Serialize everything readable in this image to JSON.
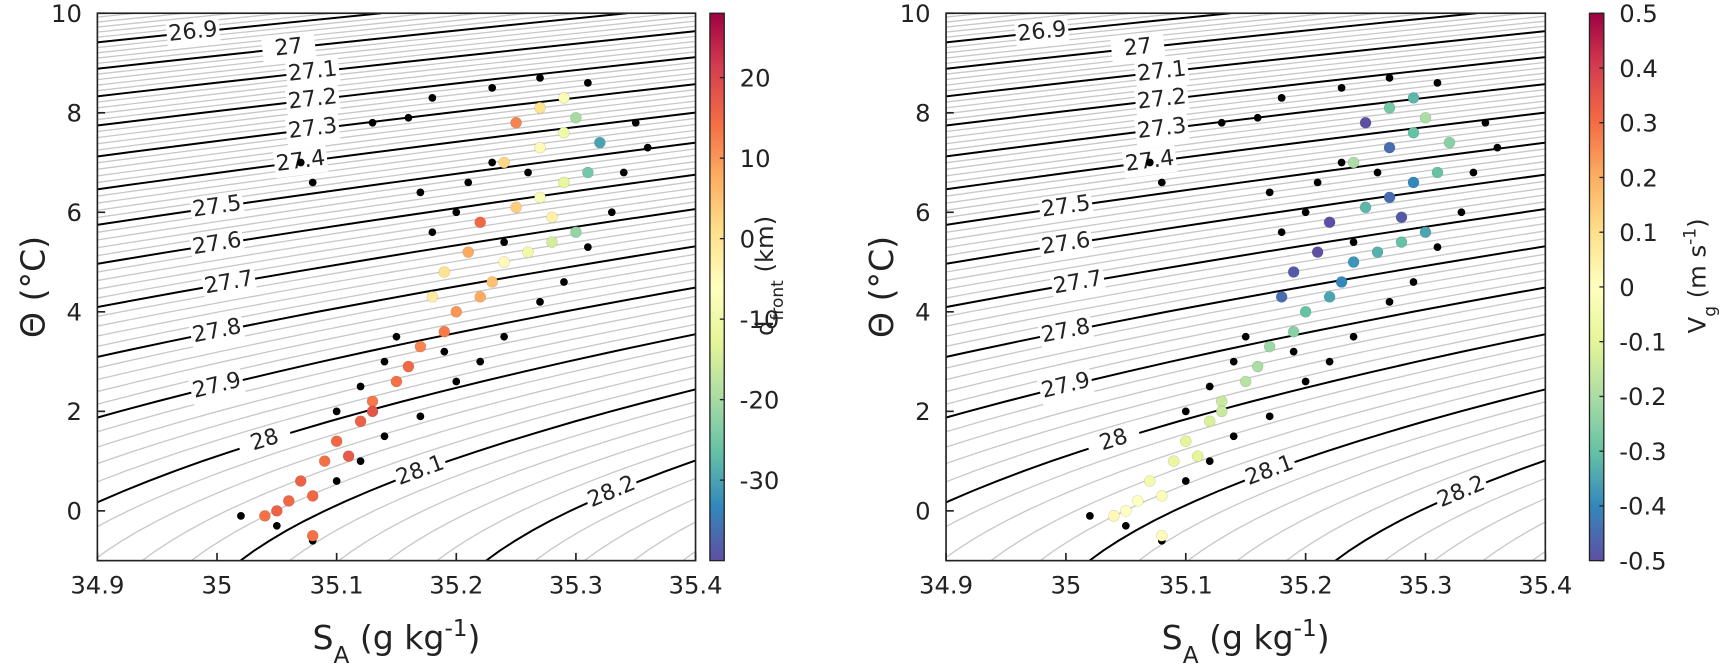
{
  "chart_data": [
    {
      "type": "scatter",
      "xlabel": [
        {
          "text": "S"
        },
        {
          "text": "A",
          "style": "sub"
        },
        {
          "text": " (g kg"
        },
        {
          "text": "-1",
          "style": "sup"
        },
        {
          "text": ")"
        }
      ],
      "ylabel": [
        {
          "text": "Θ (°C)"
        }
      ],
      "xlim": [
        34.9,
        35.4
      ],
      "xticks": [
        34.9,
        35,
        35.1,
        35.2,
        35.3,
        35.4
      ],
      "ylim": [
        -1,
        10
      ],
      "yticks": [
        0,
        2,
        4,
        6,
        8,
        10
      ],
      "contours": [
        26.9,
        27,
        27.1,
        27.2,
        27.3,
        27.4,
        27.5,
        27.6,
        27.7,
        27.8,
        27.9,
        28,
        28.1,
        28.2
      ],
      "colorbar": {
        "label": [
          {
            "text": "d"
          },
          {
            "text": "front",
            "style": "sub"
          },
          {
            "text": " (km)"
          }
        ],
        "clim": [
          -40,
          28
        ],
        "ticks": [
          -30,
          -20,
          -10,
          0,
          10,
          20
        ],
        "colormap": [
          "#5e4fa2",
          "#3288bd",
          "#66c2a5",
          "#abdda4",
          "#e6f598",
          "#ffffbf",
          "#fee08b",
          "#fdae61",
          "#f46d43",
          "#d53e4f",
          "#9e0142"
        ]
      },
      "background": {
        "color": "#000000",
        "x": [
          35.02,
          35.05,
          35.1,
          35.12,
          35.14,
          35.17,
          35.2,
          35.22,
          35.24,
          35.1,
          35.12,
          35.14,
          35.27,
          35.29,
          35.31,
          35.33,
          35.34,
          35.36,
          35.35,
          35.31,
          35.27,
          35.23,
          35.18,
          35.16,
          35.13,
          35.07,
          35.08,
          35.17,
          35.2,
          35.18,
          35.21,
          35.23,
          35.26,
          35.24,
          35.15,
          35.19,
          35.08
        ],
        "y": [
          -0.1,
          -0.3,
          0.6,
          1.0,
          1.5,
          1.9,
          2.6,
          3.0,
          3.5,
          2.0,
          2.5,
          3.0,
          4.2,
          4.6,
          5.3,
          6.0,
          6.8,
          7.3,
          7.8,
          8.6,
          8.7,
          8.5,
          8.3,
          7.9,
          7.8,
          7.0,
          6.6,
          6.4,
          6.0,
          5.6,
          6.6,
          7.0,
          6.8,
          5.4,
          3.5,
          3.2,
          -0.6
        ]
      },
      "points": {
        "x": [
          35.04,
          35.06,
          35.08,
          35.08,
          35.07,
          35.09,
          35.1,
          35.12,
          35.13,
          35.15,
          35.16,
          35.17,
          35.19,
          35.2,
          35.22,
          35.23,
          35.19,
          35.24,
          35.26,
          35.28,
          35.3,
          35.22,
          35.25,
          35.27,
          35.29,
          35.31,
          35.24,
          35.27,
          35.29,
          35.32,
          35.25,
          35.27,
          35.29,
          35.28,
          35.21,
          35.18,
          35.13,
          35.11,
          35.05,
          35.3
        ],
        "y": [
          -0.1,
          0.2,
          -0.5,
          0.3,
          0.6,
          1.0,
          1.4,
          1.8,
          2.2,
          2.6,
          2.9,
          3.3,
          3.6,
          4.0,
          4.3,
          4.6,
          4.8,
          5.0,
          5.2,
          5.4,
          5.6,
          5.8,
          6.1,
          6.3,
          6.6,
          6.8,
          7.0,
          7.3,
          7.6,
          7.4,
          7.8,
          8.1,
          8.3,
          5.9,
          5.2,
          4.3,
          2.0,
          1.1,
          0.0,
          7.9
        ],
        "c": [
          14,
          15,
          14,
          15,
          16,
          14,
          15,
          16,
          13,
          14,
          15,
          12,
          13,
          10,
          8,
          5,
          0,
          -5,
          -10,
          -15,
          -22,
          15,
          3,
          -8,
          -12,
          -25,
          2,
          -5,
          -10,
          -30,
          12,
          0,
          -8,
          -3,
          8,
          -2,
          18,
          17,
          16,
          -20
        ]
      }
    },
    {
      "type": "scatter",
      "xlabel": [
        {
          "text": "S"
        },
        {
          "text": "A",
          "style": "sub"
        },
        {
          "text": " (g kg"
        },
        {
          "text": "-1",
          "style": "sup"
        },
        {
          "text": ")"
        }
      ],
      "ylabel": [
        {
          "text": "Θ (°C)"
        }
      ],
      "xlim": [
        34.9,
        35.4
      ],
      "xticks": [
        34.9,
        35,
        35.1,
        35.2,
        35.3,
        35.4
      ],
      "ylim": [
        -1,
        10
      ],
      "yticks": [
        0,
        2,
        4,
        6,
        8,
        10
      ],
      "contours": [
        26.9,
        27,
        27.1,
        27.2,
        27.3,
        27.4,
        27.5,
        27.6,
        27.7,
        27.8,
        27.9,
        28,
        28.1,
        28.2
      ],
      "colorbar": {
        "label": [
          {
            "text": "V"
          },
          {
            "text": "g",
            "style": "sub"
          },
          {
            "text": " (m s"
          },
          {
            "text": "-1",
            "style": "sup"
          },
          {
            "text": ")"
          }
        ],
        "clim": [
          -0.5,
          0.5
        ],
        "ticks": [
          -0.5,
          -0.4,
          -0.3,
          -0.2,
          -0.1,
          0,
          0.1,
          0.2,
          0.3,
          0.4,
          0.5
        ],
        "colormap": [
          "#5e4fa2",
          "#3288bd",
          "#66c2a5",
          "#abdda4",
          "#e6f598",
          "#ffffbf",
          "#fee08b",
          "#fdae61",
          "#f46d43",
          "#d53e4f",
          "#9e0142"
        ]
      },
      "background": {
        "color": "#000000",
        "x": [
          35.02,
          35.05,
          35.1,
          35.12,
          35.14,
          35.17,
          35.2,
          35.22,
          35.24,
          35.1,
          35.12,
          35.14,
          35.27,
          35.29,
          35.31,
          35.33,
          35.34,
          35.36,
          35.35,
          35.31,
          35.27,
          35.23,
          35.18,
          35.16,
          35.13,
          35.07,
          35.08,
          35.17,
          35.2,
          35.18,
          35.21,
          35.23,
          35.26,
          35.24,
          35.15,
          35.19,
          35.08
        ],
        "y": [
          -0.1,
          -0.3,
          0.6,
          1.0,
          1.5,
          1.9,
          2.6,
          3.0,
          3.5,
          2.0,
          2.5,
          3.0,
          4.2,
          4.6,
          5.3,
          6.0,
          6.8,
          7.3,
          7.8,
          8.6,
          8.7,
          8.5,
          8.3,
          7.9,
          7.8,
          7.0,
          6.6,
          6.4,
          6.0,
          5.6,
          6.6,
          7.0,
          6.8,
          5.4,
          3.5,
          3.2,
          -0.6
        ]
      },
      "points": {
        "x": [
          35.04,
          35.06,
          35.08,
          35.08,
          35.07,
          35.09,
          35.1,
          35.12,
          35.13,
          35.15,
          35.16,
          35.17,
          35.19,
          35.2,
          35.22,
          35.23,
          35.19,
          35.24,
          35.26,
          35.28,
          35.3,
          35.22,
          35.25,
          35.27,
          35.29,
          35.31,
          35.24,
          35.27,
          35.29,
          35.32,
          35.25,
          35.27,
          35.29,
          35.28,
          35.21,
          35.18,
          35.13,
          35.11,
          35.05,
          35.3
        ],
        "y": [
          -0.1,
          0.2,
          -0.5,
          0.3,
          0.6,
          1.0,
          1.4,
          1.8,
          2.2,
          2.6,
          2.9,
          3.3,
          3.6,
          4.0,
          4.3,
          4.6,
          4.8,
          5.0,
          5.2,
          5.4,
          5.6,
          5.8,
          6.1,
          6.3,
          6.6,
          6.8,
          7.0,
          7.3,
          7.6,
          7.4,
          7.8,
          8.1,
          8.3,
          5.9,
          5.2,
          4.3,
          2.0,
          1.1,
          0.0,
          7.9
        ],
        "c": [
          0.02,
          0.0,
          0.01,
          -0.02,
          -0.05,
          -0.08,
          -0.1,
          -0.12,
          -0.15,
          -0.18,
          -0.2,
          -0.22,
          -0.25,
          -0.3,
          -0.35,
          -0.4,
          -0.48,
          -0.38,
          -0.33,
          -0.3,
          -0.35,
          -0.5,
          -0.32,
          -0.45,
          -0.4,
          -0.3,
          -0.2,
          -0.45,
          -0.3,
          -0.25,
          -0.5,
          -0.28,
          -0.32,
          -0.48,
          -0.5,
          -0.45,
          -0.15,
          -0.1,
          0.0,
          -0.2
        ]
      }
    }
  ]
}
